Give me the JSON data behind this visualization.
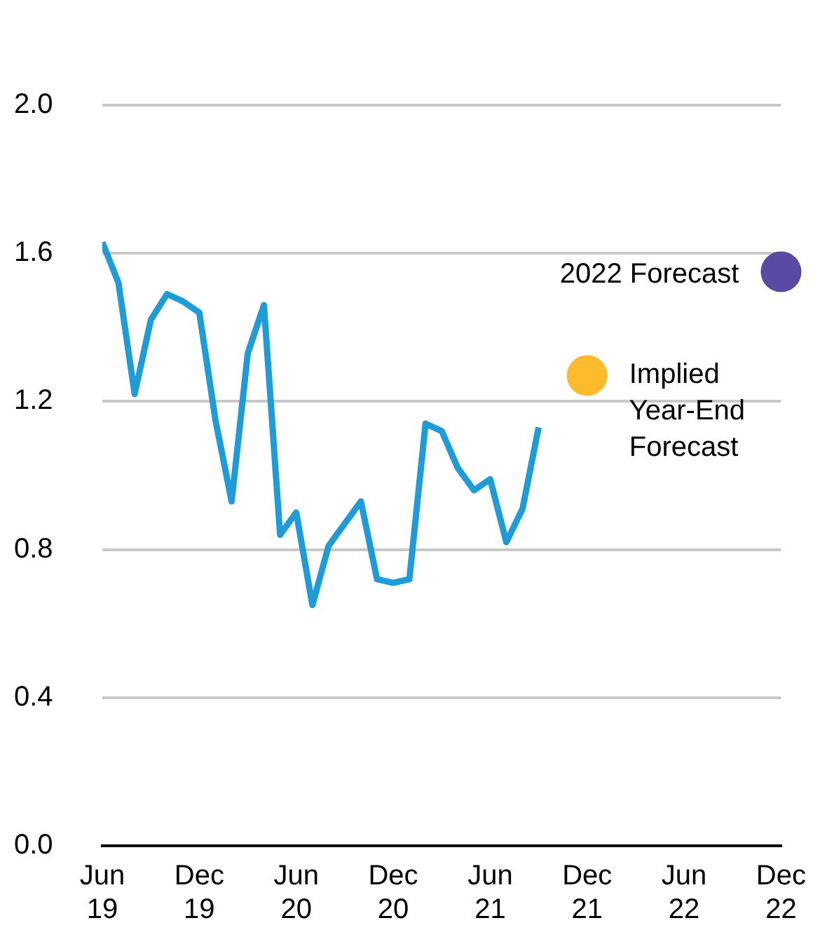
{
  "chart_data": {
    "type": "line",
    "x": [
      "2019-06",
      "2019-07",
      "2019-08",
      "2019-09",
      "2019-10",
      "2019-11",
      "2019-12",
      "2020-01",
      "2020-02",
      "2020-03",
      "2020-04",
      "2020-05",
      "2020-06",
      "2020-07",
      "2020-08",
      "2020-09",
      "2020-10",
      "2020-11",
      "2020-12",
      "2021-01",
      "2021-02",
      "2021-03",
      "2021-04",
      "2021-05",
      "2021-06",
      "2021-07",
      "2021-08",
      "2021-09"
    ],
    "series": [
      {
        "color": "#1f9bd7",
        "values": [
          1.63,
          1.52,
          1.22,
          1.42,
          1.49,
          1.47,
          1.44,
          1.15,
          0.93,
          1.33,
          1.46,
          0.84,
          0.9,
          0.65,
          0.81,
          0.87,
          0.93,
          0.72,
          0.71,
          0.72,
          1.14,
          1.12,
          1.02,
          0.96,
          0.99,
          0.82,
          0.91,
          1.13
        ]
      },
      {
        "type": "scatter",
        "name": "Implied Year-End Forecast",
        "color": "#fdbb2d",
        "x": [
          "2021-12"
        ],
        "values": [
          1.27
        ]
      },
      {
        "type": "scatter",
        "name": "2022 Forecast",
        "color": "#5b4aa3",
        "x": [
          "2022-12"
        ],
        "values": [
          1.55
        ]
      }
    ],
    "xlim": [
      "2019-06",
      "2022-12"
    ],
    "xticks": [
      {
        "value": "2019-06",
        "label": "Jun 19"
      },
      {
        "value": "2019-12",
        "label": "Dec 19"
      },
      {
        "value": "2020-06",
        "label": "Jun 20"
      },
      {
        "value": "2020-12",
        "label": "Dec 20"
      },
      {
        "value": "2021-06",
        "label": "Jun 21"
      },
      {
        "value": "2021-12",
        "label": "Dec 21"
      },
      {
        "value": "2022-06",
        "label": "Jun 22"
      },
      {
        "value": "2022-12",
        "label": "Dec 22"
      }
    ],
    "ylim": [
      0,
      2.0
    ],
    "yticks": [
      {
        "value": 0,
        "label": "0.0"
      },
      {
        "value": 0.4,
        "label": "0.4"
      },
      {
        "value": 0.8,
        "label": "0.8"
      },
      {
        "value": 1.2,
        "label": "1.2"
      },
      {
        "value": 1.6,
        "label": "1.6"
      },
      {
        "value": 2.0,
        "label": "2.0"
      }
    ],
    "grid": "y",
    "legend": false,
    "line_style": "solid"
  }
}
